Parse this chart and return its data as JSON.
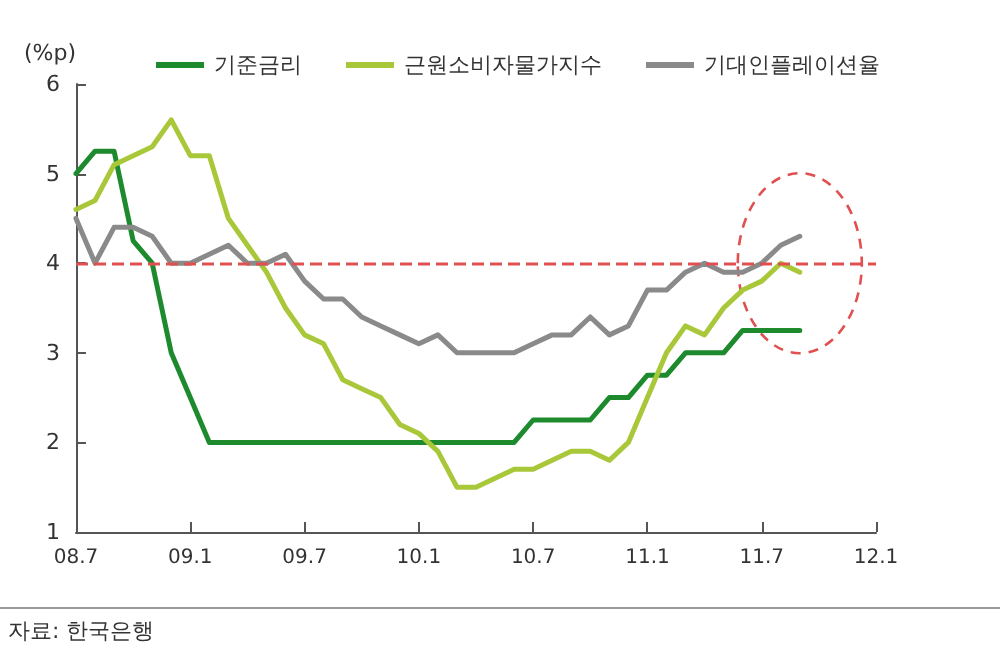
{
  "chart_data": {
    "type": "line",
    "ylabel": "(%p)",
    "annotations": [
      "자료: 한국은행"
    ],
    "categories": [
      "08.7",
      null,
      null,
      null,
      null,
      null,
      "09.1",
      null,
      null,
      null,
      null,
      null,
      "09.7",
      null,
      null,
      null,
      null,
      null,
      "10.1",
      null,
      null,
      null,
      null,
      null,
      "10.7",
      null,
      null,
      null,
      null,
      null,
      "11.1",
      null,
      null,
      null,
      null,
      null,
      "11.7",
      null,
      null,
      null,
      null,
      null,
      "12.1"
    ],
    "series": [
      {
        "name": "기준금리",
        "color": "#1e8a2e",
        "values": [
          5.0,
          5.25,
          5.25,
          4.25,
          4.0,
          3.0,
          2.5,
          2.0,
          2.0,
          2.0,
          2.0,
          2.0,
          2.0,
          2.0,
          2.0,
          2.0,
          2.0,
          2.0,
          2.0,
          2.0,
          2.0,
          2.0,
          2.0,
          2.0,
          2.25,
          2.25,
          2.25,
          2.25,
          2.5,
          2.5,
          2.75,
          2.75,
          3.0,
          3.0,
          3.0,
          3.25,
          3.25,
          3.25,
          3.25,
          null,
          null,
          null,
          null
        ]
      },
      {
        "name": "근원소비자물가지수",
        "color": "#a8c83a",
        "values": [
          4.6,
          4.7,
          5.1,
          5.2,
          5.3,
          5.6,
          5.2,
          5.2,
          4.5,
          4.2,
          3.9,
          3.5,
          3.2,
          3.1,
          2.7,
          2.6,
          2.5,
          2.2,
          2.1,
          1.9,
          1.5,
          1.5,
          1.6,
          1.7,
          1.7,
          1.8,
          1.9,
          1.9,
          1.8,
          2.0,
          2.5,
          3.0,
          3.3,
          3.2,
          3.5,
          3.7,
          3.8,
          4.0,
          3.9,
          null,
          null,
          null,
          null
        ]
      },
      {
        "name": "기대인플레이션율",
        "color": "#8a8a8a",
        "values": [
          4.5,
          4.0,
          4.4,
          4.4,
          4.3,
          4.0,
          4.0,
          4.1,
          4.2,
          4.0,
          4.0,
          4.1,
          3.8,
          3.6,
          3.6,
          3.4,
          3.3,
          3.2,
          3.1,
          3.2,
          3.0,
          3.0,
          3.0,
          3.0,
          3.1,
          3.2,
          3.2,
          3.4,
          3.2,
          3.3,
          3.7,
          3.7,
          3.9,
          4.0,
          3.9,
          3.9,
          4.0,
          4.2,
          4.3,
          null,
          null,
          null,
          null
        ]
      }
    ],
    "ylim": [
      1,
      6
    ],
    "yticks": [
      1,
      2,
      3,
      4,
      5,
      6
    ],
    "grid": false,
    "legend": "top right",
    "marker": "none",
    "line_style": "solid",
    "ref_lines": [
      {
        "axis": "y",
        "value": 4,
        "color": "#e05050",
        "line_style": "dashed"
      }
    ]
  }
}
